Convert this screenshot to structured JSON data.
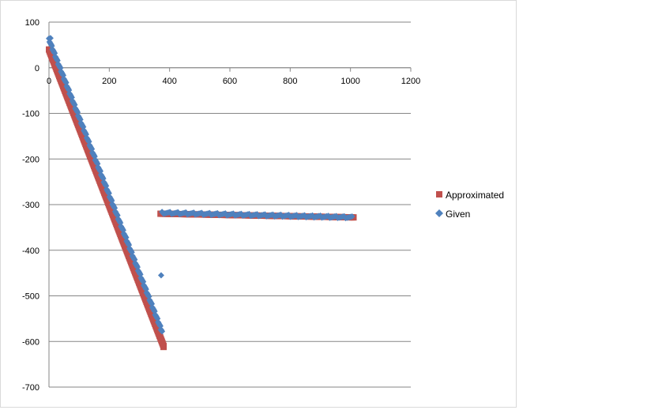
{
  "chart_data": {
    "type": "scatter",
    "title": "",
    "xlabel": "",
    "ylabel": "",
    "xlim": [
      0,
      1200
    ],
    "ylim": [
      -700,
      100
    ],
    "x_ticks": [
      0,
      200,
      400,
      600,
      800,
      1000,
      1200
    ],
    "y_ticks": [
      100,
      0,
      -100,
      -200,
      -300,
      -400,
      -500,
      -600,
      -700
    ],
    "grid": "horizontal",
    "legend_position": "right",
    "series": [
      {
        "name": "Approximated",
        "color": "#c0504d",
        "marker": "square",
        "segments": [
          {
            "x": [
              0,
              380
            ],
            "y": [
              40,
              -610
            ]
          },
          {
            "x": [
              370,
              1010
            ],
            "y": [
              -320,
              -328
            ]
          }
        ],
        "points": [
          {
            "x": 380,
            "y": -612
          }
        ]
      },
      {
        "name": "Given",
        "color": "#4f81bd",
        "marker": "diamond",
        "segments": [
          {
            "x": [
              0,
              375
            ],
            "y": [
              62,
              -578
            ]
          },
          {
            "x": [
              375,
              1005
            ],
            "y": [
              -318,
              -328
            ]
          }
        ],
        "points": [
          {
            "x": 5,
            "y": 65
          },
          {
            "x": 372,
            "y": -455
          },
          {
            "x": 372,
            "y": -575
          }
        ]
      }
    ]
  }
}
